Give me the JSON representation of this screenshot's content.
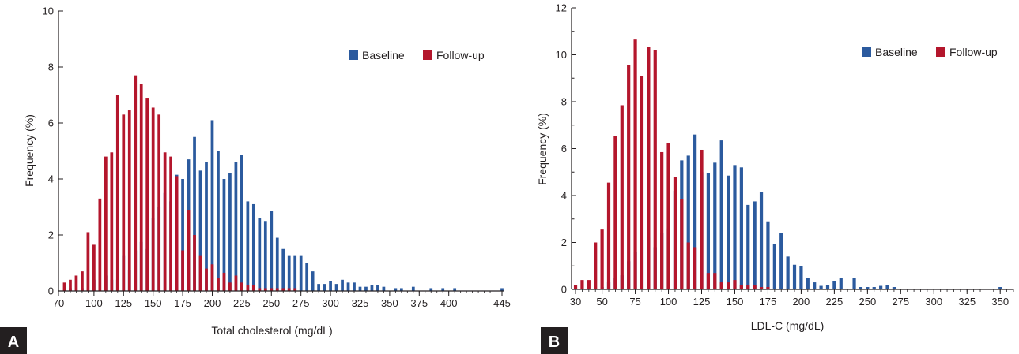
{
  "colors": {
    "baseline": "#2b5a9e",
    "follow_up": "#b4162c",
    "axis": "#231f20"
  },
  "chart_data": [
    {
      "panel_label": "A",
      "type": "bar",
      "xlabel": "Total cholesterol (mg/dL)",
      "ylabel": "Frequency (%)",
      "ylim": [
        0,
        10
      ],
      "yticks": [
        0,
        2,
        4,
        6,
        8,
        10
      ],
      "xlim": [
        70,
        447
      ],
      "xticks": [
        70,
        100,
        125,
        150,
        175,
        200,
        225,
        250,
        275,
        300,
        325,
        350,
        375,
        400,
        445
      ],
      "bin_width": 5,
      "legend_position": "top-right",
      "series": [
        {
          "name": "Baseline",
          "color_key": "baseline",
          "x": [
            80,
            90,
            100,
            110,
            115,
            120,
            125,
            130,
            135,
            140,
            145,
            150,
            155,
            160,
            165,
            170,
            175,
            180,
            185,
            190,
            195,
            200,
            205,
            210,
            215,
            220,
            225,
            230,
            235,
            240,
            245,
            250,
            255,
            260,
            265,
            270,
            275,
            280,
            285,
            290,
            295,
            300,
            305,
            310,
            315,
            320,
            325,
            330,
            335,
            340,
            345,
            355,
            360,
            370,
            385,
            395,
            405,
            445
          ],
          "values": [
            0.1,
            0.1,
            0.4,
            0.55,
            0.4,
            0.4,
            1.25,
            0.75,
            1.45,
            1.75,
            1.5,
            2.6,
            3.0,
            3.5,
            3.2,
            4.15,
            4.0,
            4.7,
            5.5,
            4.3,
            4.6,
            6.1,
            5.0,
            4.0,
            4.2,
            4.6,
            4.85,
            3.2,
            3.1,
            2.6,
            2.5,
            2.85,
            1.9,
            1.5,
            1.25,
            1.25,
            1.25,
            1.0,
            0.7,
            0.25,
            0.25,
            0.35,
            0.25,
            0.4,
            0.3,
            0.3,
            0.15,
            0.15,
            0.2,
            0.2,
            0.15,
            0.1,
            0.1,
            0.15,
            0.1,
            0.1,
            0.1,
            0.1
          ]
        },
        {
          "name": "Follow-up",
          "color_key": "follow_up",
          "x": [
            75,
            80,
            85,
            90,
            95,
            100,
            105,
            110,
            115,
            120,
            125,
            130,
            135,
            140,
            145,
            150,
            155,
            160,
            165,
            170,
            175,
            180,
            185,
            190,
            195,
            200,
            205,
            210,
            215,
            220,
            225,
            230,
            235,
            240,
            245,
            250,
            255,
            260,
            265,
            270
          ],
          "values": [
            0.3,
            0.4,
            0.55,
            0.7,
            2.1,
            1.65,
            3.3,
            4.8,
            4.95,
            7.0,
            6.3,
            6.45,
            7.7,
            7.4,
            6.9,
            6.55,
            6.3,
            4.95,
            4.8,
            4.1,
            1.45,
            2.9,
            2.0,
            1.25,
            0.8,
            0.95,
            0.45,
            0.65,
            0.3,
            0.55,
            0.3,
            0.2,
            0.2,
            0.1,
            0.1,
            0.1,
            0.1,
            0.1,
            0.1,
            0.1
          ]
        }
      ]
    },
    {
      "panel_label": "B",
      "type": "bar",
      "xlabel": "LDL-C (mg/dL)",
      "ylabel": "Frequency (%)",
      "ylim": [
        0,
        12
      ],
      "yticks": [
        0,
        2,
        4,
        6,
        8,
        10,
        12
      ],
      "xlim": [
        27,
        360
      ],
      "xticks": [
        30,
        50,
        75,
        100,
        125,
        150,
        175,
        200,
        225,
        250,
        275,
        300,
        325,
        350
      ],
      "bin_width": 5,
      "legend_position": "top-right",
      "series": [
        {
          "name": "Baseline",
          "color_key": "baseline",
          "x": [
            50,
            55,
            60,
            65,
            70,
            75,
            80,
            85,
            90,
            95,
            100,
            105,
            110,
            115,
            120,
            125,
            130,
            135,
            140,
            145,
            150,
            155,
            160,
            165,
            170,
            175,
            180,
            185,
            190,
            195,
            200,
            205,
            210,
            215,
            220,
            225,
            230,
            240,
            245,
            250,
            255,
            260,
            265,
            270,
            350
          ],
          "values": [
            0.1,
            0.3,
            0.5,
            0.6,
            1.2,
            1.6,
            2.1,
            2.2,
            1.8,
            2.4,
            2.6,
            4.2,
            5.5,
            5.7,
            6.6,
            5.0,
            4.95,
            5.4,
            6.35,
            4.85,
            5.3,
            5.2,
            3.6,
            3.75,
            4.15,
            2.9,
            1.95,
            2.4,
            1.4,
            1.05,
            1.0,
            0.5,
            0.3,
            0.15,
            0.2,
            0.35,
            0.5,
            0.5,
            0.1,
            0.1,
            0.1,
            0.15,
            0.2,
            0.1,
            0.1
          ]
        },
        {
          "name": "Follow-up",
          "color_key": "follow_up",
          "x": [
            30,
            35,
            40,
            45,
            50,
            55,
            60,
            65,
            70,
            75,
            80,
            85,
            90,
            95,
            100,
            105,
            110,
            115,
            120,
            125,
            130,
            135,
            140,
            145,
            150,
            155,
            160,
            165,
            170,
            175
          ],
          "values": [
            0.2,
            0.4,
            0.4,
            2.0,
            2.55,
            4.55,
            6.55,
            7.85,
            9.55,
            10.65,
            9.1,
            10.35,
            10.2,
            5.85,
            6.25,
            4.8,
            3.85,
            2.0,
            1.8,
            5.95,
            0.7,
            0.7,
            0.3,
            0.3,
            0.4,
            0.2,
            0.2,
            0.2,
            0.1,
            0.1
          ]
        }
      ]
    }
  ]
}
